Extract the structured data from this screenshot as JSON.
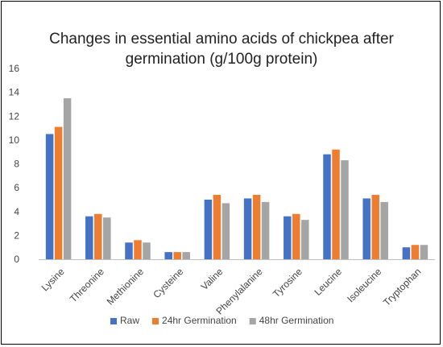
{
  "chart_data": {
    "type": "bar",
    "title": "Changes in essential amino acids of chickpea after germination (g/100g protein)",
    "title_lines": [
      "Changes in essential amino acids of chickpea after",
      "germination (g/100g protein)"
    ],
    "xlabel": "",
    "ylabel": "",
    "ylim": [
      0,
      16
    ],
    "yticks": [
      0,
      2,
      4,
      6,
      8,
      10,
      12,
      14,
      16
    ],
    "grid": false,
    "legend_position": "bottom",
    "categories": [
      "Lysine",
      "Threonine",
      "Methionine",
      "Cysteine",
      "Valine",
      "Phenylalanine",
      "Tyrosine",
      "Leucine",
      "Isoleucine",
      "Tryptophan"
    ],
    "series": [
      {
        "name": "Raw",
        "color": "#4472C4",
        "values": [
          10.5,
          3.6,
          1.4,
          0.6,
          5.0,
          5.1,
          3.6,
          8.8,
          5.1,
          1.0
        ]
      },
      {
        "name": "24hr Germination",
        "color": "#ED7D31",
        "values": [
          11.1,
          3.8,
          1.6,
          0.6,
          5.4,
          5.4,
          3.8,
          9.2,
          5.4,
          1.2
        ]
      },
      {
        "name": "48hr Germination",
        "color": "#A5A5A5",
        "values": [
          13.5,
          3.5,
          1.4,
          0.6,
          4.7,
          4.8,
          3.3,
          8.3,
          4.8,
          1.2
        ]
      }
    ]
  }
}
